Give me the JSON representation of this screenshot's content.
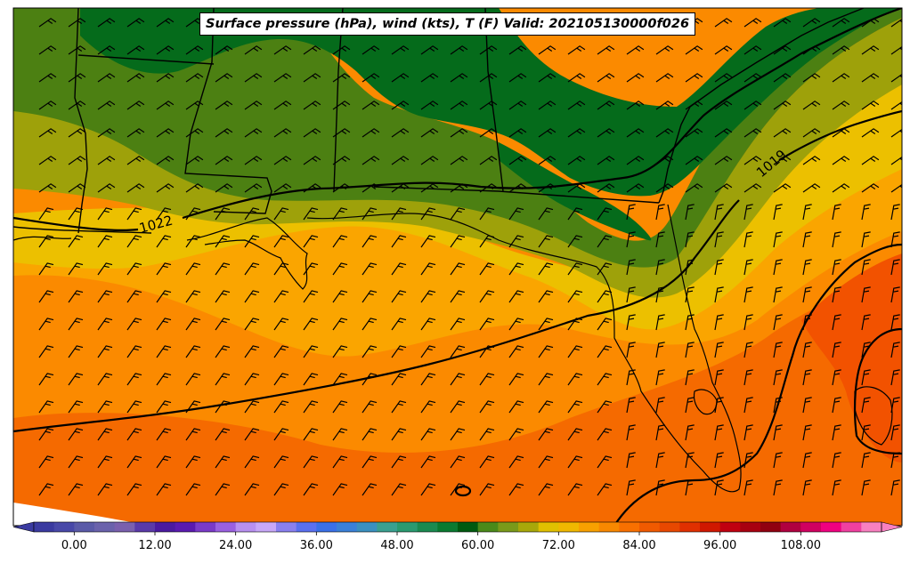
{
  "title": "Surface pressure (hPa), wind (kts), T (F) Valid: 202105130000f026",
  "isobar_labels": [
    "1022",
    "1019"
  ],
  "colorbar": {
    "min": -6,
    "max": 120,
    "step": 3,
    "tick_labels": [
      "0.00",
      "12.00",
      "24.00",
      "36.00",
      "48.00",
      "60.00",
      "72.00",
      "84.00",
      "96.00",
      "108.00"
    ],
    "colors": [
      "#3a3aa0",
      "#4848a8",
      "#5a5aa8",
      "#6a62ac",
      "#7a60ae",
      "#5a3aa8",
      "#4a1aa0",
      "#5a1ab0",
      "#7a3ac8",
      "#9a60e0",
      "#b890f0",
      "#c8a8f8",
      "#8a80f0",
      "#5a70f0",
      "#3a70e8",
      "#3a80d8",
      "#3a90c0",
      "#3aa090",
      "#2a9a70",
      "#1a8a50",
      "#0a7a30",
      "#005a10",
      "#4a8a1a",
      "#7a9a1a",
      "#a8a80a",
      "#e0c000",
      "#f0b800",
      "#f8a000",
      "#f88800",
      "#f87000",
      "#f05a00",
      "#e84800",
      "#e03000",
      "#d01800",
      "#c00010",
      "#a80010",
      "#900010",
      "#b00040",
      "#d00060",
      "#f00080",
      "#f040a0",
      "#f880c0"
    ]
  },
  "fields": {
    "green_dark": "#056b1b",
    "green_mid": "#4c8012",
    "olive": "#9ea10a",
    "yellow": "#ecc000",
    "orange_light": "#faa500",
    "orange": "#fb8a00",
    "orange_dark": "#f56a00",
    "red_orange": "#f25200"
  }
}
